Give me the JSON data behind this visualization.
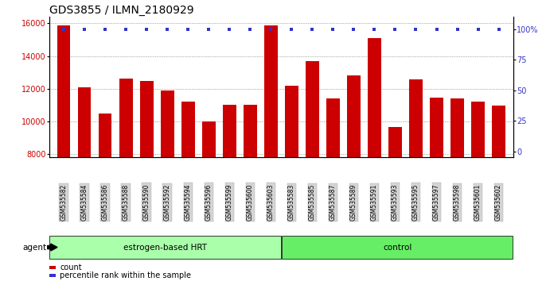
{
  "title": "GDS3855 / ILMN_2180929",
  "categories": [
    "GSM535582",
    "GSM535584",
    "GSM535586",
    "GSM535588",
    "GSM535590",
    "GSM535592",
    "GSM535594",
    "GSM535596",
    "GSM535599",
    "GSM535600",
    "GSM535603",
    "GSM535583",
    "GSM535585",
    "GSM535587",
    "GSM535589",
    "GSM535591",
    "GSM535593",
    "GSM535595",
    "GSM535597",
    "GSM535598",
    "GSM535601",
    "GSM535602"
  ],
  "values": [
    15900,
    12100,
    10500,
    12600,
    12500,
    11900,
    11200,
    10000,
    11000,
    11000,
    15900,
    12200,
    13700,
    11400,
    12800,
    15100,
    9650,
    12550,
    11450,
    11400,
    11200,
    10950
  ],
  "bar_color": "#cc0000",
  "dot_color": "#3333cc",
  "ylim_left": [
    7800,
    16400
  ],
  "ylim_right": [
    -5,
    110
  ],
  "yticks_left": [
    8000,
    10000,
    12000,
    14000,
    16000
  ],
  "ytick_labels_left": [
    "8000",
    "10000",
    "12000",
    "14000",
    "16000"
  ],
  "yticks_right": [
    0,
    25,
    50,
    75,
    100
  ],
  "ytick_labels_right": [
    "0",
    "25",
    "50",
    "75",
    "100%"
  ],
  "group1_label": "estrogen-based HRT",
  "group2_label": "control",
  "group1_count": 11,
  "group2_count": 11,
  "group1_color": "#aaffaa",
  "group2_color": "#66ee66",
  "agent_label": "agent",
  "legend_count_label": "count",
  "legend_pct_label": "percentile rank within the sample",
  "title_fontsize": 10,
  "axis_tick_fontsize": 7,
  "bar_width": 0.65,
  "xticklabel_bg": "#d4d4d4",
  "xticklabel_fontsize": 5.5
}
